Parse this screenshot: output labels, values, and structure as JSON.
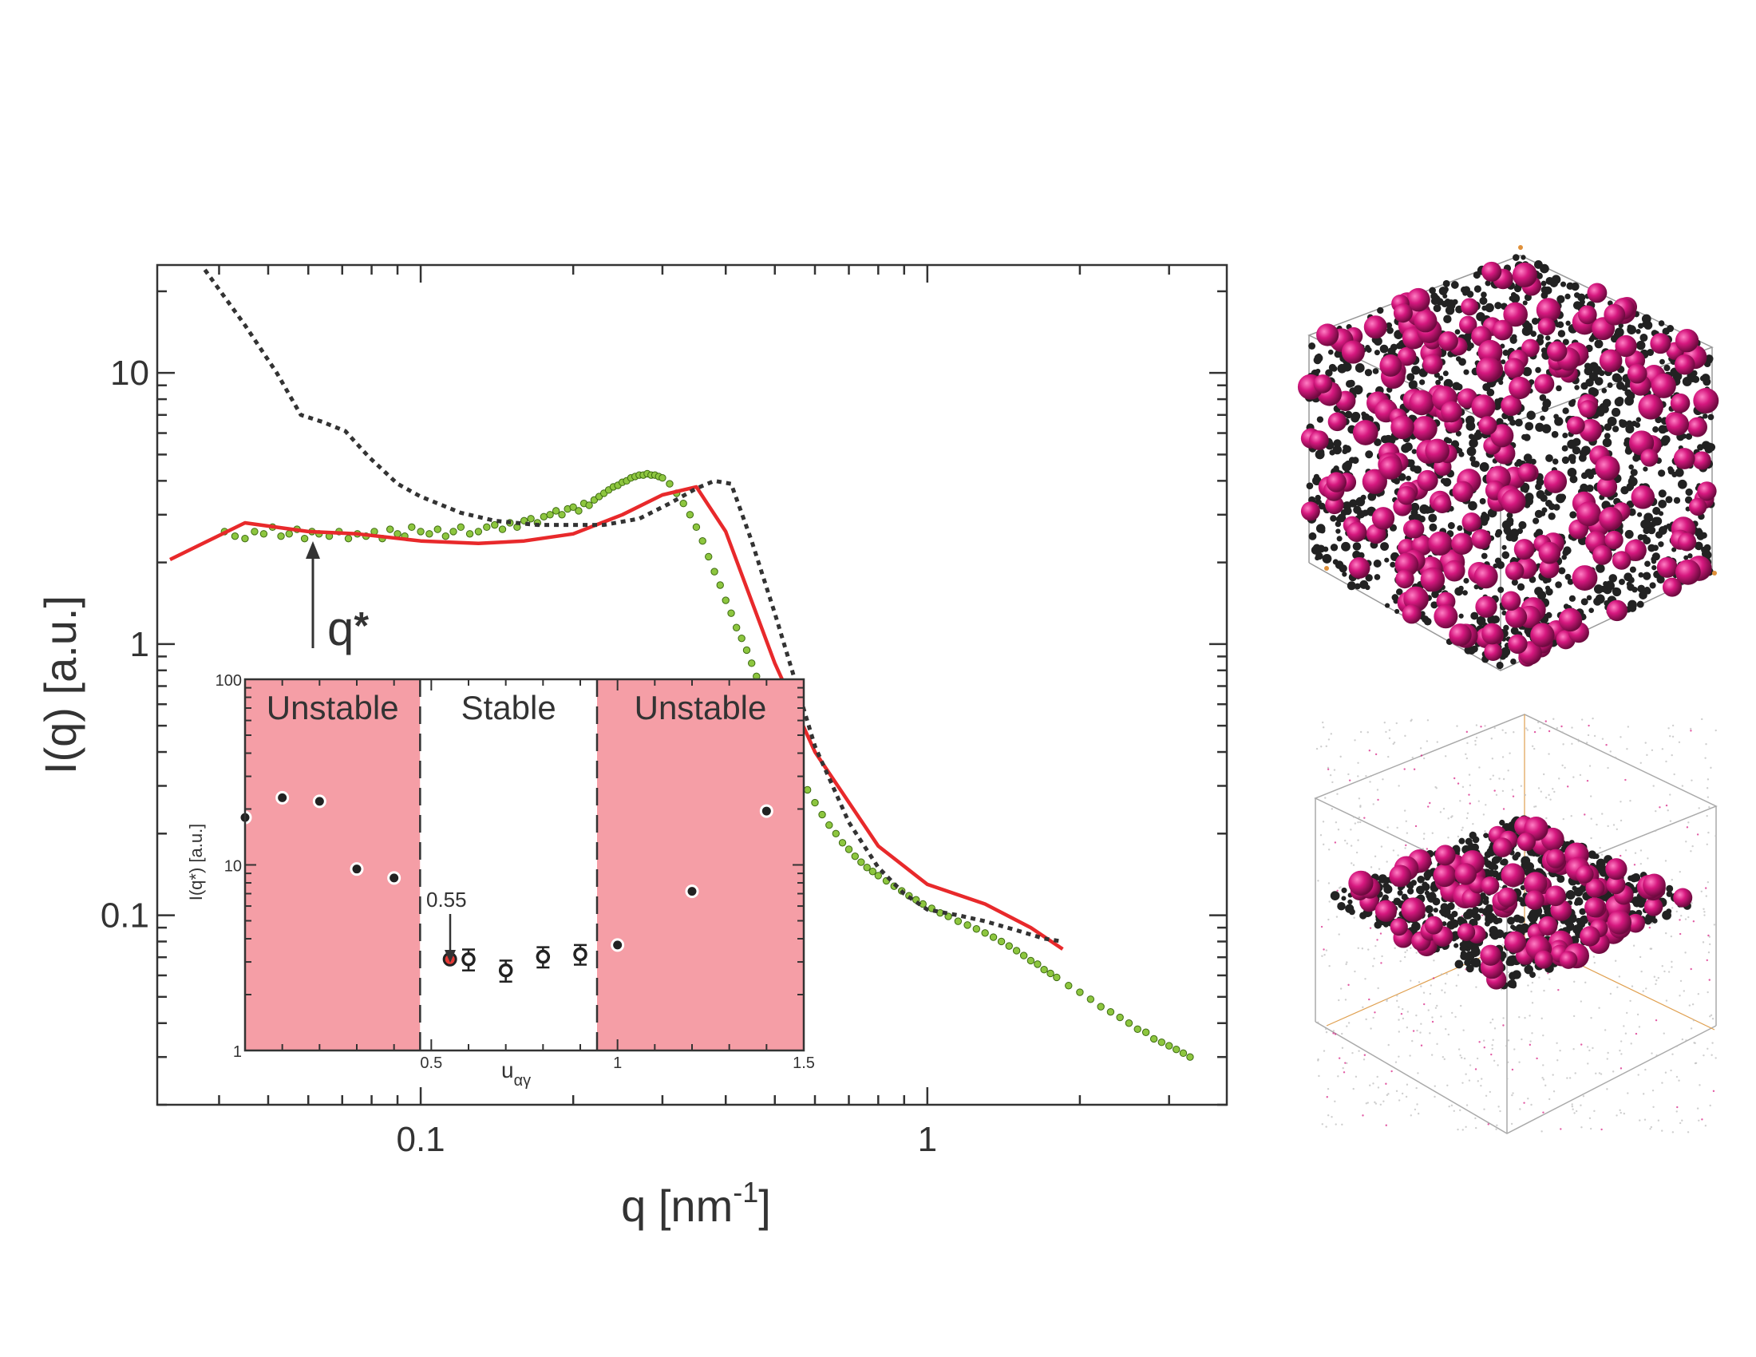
{
  "chart_data": [
    {
      "type": "line",
      "xlabel": "q [nm",
      "xlabel_sup": "-1",
      "xlabel_end": "]",
      "ylabel": "I(q) [a.u.]",
      "xscale": "log",
      "yscale": "log",
      "xlim": [
        0.0302,
        3.9
      ],
      "ylim": [
        0.02,
        25
      ],
      "x_ticks": [
        {
          "value": 0.1,
          "label": "0.1"
        },
        {
          "value": 1,
          "label": "1"
        }
      ],
      "y_ticks": [
        {
          "value": 0.1,
          "label": "0.1"
        },
        {
          "value": 1,
          "label": "1"
        },
        {
          "value": 10,
          "label": "10"
        }
      ],
      "series": [
        {
          "style": "scatter",
          "color": "#8dc63f",
          "edge": "#3e6b12",
          "x": [
            0.041,
            0.043,
            0.045,
            0.047,
            0.049,
            0.051,
            0.053,
            0.055,
            0.057,
            0.059,
            0.061,
            0.063,
            0.066,
            0.069,
            0.072,
            0.075,
            0.078,
            0.081,
            0.084,
            0.087,
            0.09,
            0.093,
            0.096,
            0.1,
            0.104,
            0.108,
            0.112,
            0.116,
            0.12,
            0.125,
            0.13,
            0.135,
            0.14,
            0.145,
            0.15,
            0.155,
            0.16,
            0.165,
            0.17,
            0.175,
            0.18,
            0.185,
            0.19,
            0.195,
            0.2,
            0.205,
            0.21,
            0.215,
            0.22,
            0.225,
            0.23,
            0.235,
            0.24,
            0.245,
            0.25,
            0.255,
            0.26,
            0.265,
            0.27,
            0.275,
            0.28,
            0.285,
            0.29,
            0.295,
            0.3,
            0.31,
            0.32,
            0.33,
            0.34,
            0.35,
            0.36,
            0.37,
            0.38,
            0.39,
            0.4,
            0.41,
            0.42,
            0.43,
            0.44,
            0.45,
            0.46,
            0.47,
            0.48,
            0.49,
            0.5,
            0.52,
            0.54,
            0.56,
            0.58,
            0.6,
            0.62,
            0.64,
            0.66,
            0.68,
            0.7,
            0.72,
            0.74,
            0.76,
            0.78,
            0.8,
            0.83,
            0.86,
            0.89,
            0.92,
            0.95,
            0.98,
            1.02,
            1.06,
            1.1,
            1.15,
            1.2,
            1.25,
            1.3,
            1.35,
            1.4,
            1.45,
            1.5,
            1.55,
            1.6,
            1.65,
            1.7,
            1.75,
            1.8,
            1.9,
            2.0,
            2.1,
            2.2,
            2.3,
            2.4,
            2.5,
            2.6,
            2.7,
            2.8,
            2.9,
            3.0,
            3.1,
            3.2,
            3.3
          ],
          "y": [
            2.6,
            2.5,
            2.45,
            2.6,
            2.55,
            2.7,
            2.5,
            2.55,
            2.65,
            2.45,
            2.6,
            2.55,
            2.5,
            2.6,
            2.45,
            2.55,
            2.5,
            2.6,
            2.45,
            2.65,
            2.55,
            2.5,
            2.7,
            2.6,
            2.55,
            2.65,
            2.5,
            2.6,
            2.7,
            2.55,
            2.6,
            2.7,
            2.75,
            2.65,
            2.8,
            2.7,
            2.85,
            2.9,
            2.8,
            2.95,
            3.0,
            3.1,
            3.0,
            3.15,
            3.2,
            3.1,
            3.3,
            3.25,
            3.4,
            3.5,
            3.6,
            3.7,
            3.8,
            3.85,
            3.95,
            4.0,
            4.1,
            4.15,
            4.2,
            4.2,
            4.25,
            4.2,
            4.2,
            4.15,
            4.1,
            3.9,
            3.6,
            3.3,
            3.0,
            2.7,
            2.4,
            2.1,
            1.85,
            1.65,
            1.45,
            1.3,
            1.15,
            1.05,
            0.95,
            0.85,
            0.76,
            0.69,
            0.63,
            0.57,
            0.52,
            0.44,
            0.38,
            0.33,
            0.29,
            0.26,
            0.235,
            0.215,
            0.2,
            0.185,
            0.175,
            0.165,
            0.157,
            0.15,
            0.145,
            0.14,
            0.134,
            0.128,
            0.123,
            0.118,
            0.114,
            0.11,
            0.106,
            0.102,
            0.099,
            0.095,
            0.092,
            0.089,
            0.086,
            0.083,
            0.08,
            0.077,
            0.074,
            0.071,
            0.068,
            0.066,
            0.063,
            0.061,
            0.059,
            0.055,
            0.052,
            0.049,
            0.046,
            0.044,
            0.042,
            0.04,
            0.038,
            0.037,
            0.035,
            0.034,
            0.033,
            0.032,
            0.031,
            0.03
          ]
        },
        {
          "style": "solid",
          "color": "#e8292b",
          "x": [
            0.032,
            0.045,
            0.06,
            0.075,
            0.1,
            0.13,
            0.16,
            0.2,
            0.25,
            0.3,
            0.35,
            0.4,
            0.5,
            0.6,
            0.8,
            1.0,
            1.3,
            1.6,
            1.85
          ],
          "y": [
            2.05,
            2.8,
            2.6,
            2.55,
            2.4,
            2.35,
            2.4,
            2.55,
            3.0,
            3.55,
            3.8,
            2.6,
            0.85,
            0.4,
            0.18,
            0.13,
            0.11,
            0.09,
            0.075
          ]
        },
        {
          "style": "dotted",
          "color": "#333333",
          "x": [
            0.0375,
            0.045,
            0.052,
            0.058,
            0.064,
            0.071,
            0.079,
            0.09,
            0.1,
            0.12,
            0.14,
            0.17,
            0.2,
            0.23,
            0.27,
            0.31,
            0.35,
            0.38,
            0.41,
            0.45,
            0.5,
            0.55,
            0.6,
            0.7,
            0.8,
            0.9,
            1.0,
            1.15,
            1.3,
            1.5,
            1.7,
            1.85
          ],
          "y": [
            24,
            15,
            10,
            7.0,
            6.6,
            6.1,
            4.9,
            3.9,
            3.5,
            3.05,
            2.85,
            2.75,
            2.75,
            2.75,
            2.9,
            3.3,
            3.75,
            4.0,
            3.9,
            2.4,
            1.3,
            0.72,
            0.42,
            0.22,
            0.15,
            0.12,
            0.105,
            0.1,
            0.095,
            0.088,
            0.082,
            0.08
          ]
        }
      ],
      "annotation": {
        "label": "q",
        "superscript": "*",
        "x": 0.045,
        "y_from": 0.98,
        "y_to": 2.7
      }
    },
    {
      "type": "scatter",
      "xlabel": "u",
      "xlabel_sub": "αγ",
      "ylabel": "I(q*) [a.u.]",
      "xlim": [
        0.0,
        1.5
      ],
      "ylim": [
        1,
        100
      ],
      "yscale": "log",
      "x_ticks": [
        {
          "value": 0.5,
          "label": "0.5"
        },
        {
          "value": 1,
          "label": "1"
        },
        {
          "value": 1.5,
          "label": "1.5"
        }
      ],
      "y_ticks": [
        {
          "value": 1,
          "label": "1"
        },
        {
          "value": 10,
          "label": "10"
        },
        {
          "value": 100,
          "label": "100"
        }
      ],
      "regions": [
        {
          "label": "Unstable",
          "from": 0.0,
          "to": 0.47,
          "color": "#f59ea6"
        },
        {
          "label": "Stable",
          "from": 0.47,
          "to": 0.945,
          "color": "#ffffff"
        },
        {
          "label": "Unstable",
          "from": 0.945,
          "to": 1.5,
          "color": "#f59ea6"
        }
      ],
      "unstable_points": {
        "x": [
          0.0,
          0.1,
          0.2,
          0.3,
          0.4,
          1.0,
          1.2,
          1.4
        ],
        "y": [
          18,
          23,
          22,
          9.5,
          8.5,
          3.7,
          7.2,
          19.5
        ]
      },
      "stable_points": {
        "x": [
          0.6,
          0.7,
          0.8,
          0.9
        ],
        "y": [
          3.1,
          2.7,
          3.2,
          3.3
        ],
        "yerr": [
          0.4,
          0.35,
          0.4,
          0.4
        ]
      },
      "highlight_point": {
        "x": 0.55,
        "y": 3.1,
        "label": "0.55",
        "color": "#e53935"
      }
    }
  ],
  "simulation_snapshots": [
    {
      "sphere_color": "#d6187f",
      "particle_color": "#222222"
    },
    {
      "sphere_color": "#d6187f",
      "particle_color": "#222222"
    }
  ]
}
